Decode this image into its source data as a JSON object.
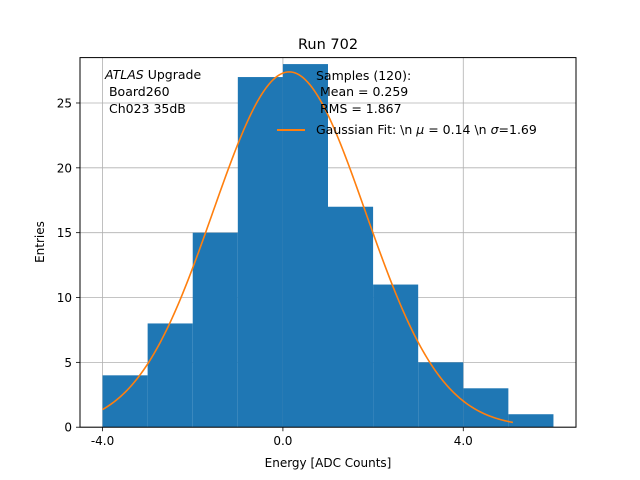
{
  "chart_data": {
    "type": "bar",
    "title": "Run 702",
    "xlabel": "Energy [ADC Counts]",
    "ylabel": "Entries",
    "xlim": [
      -4.5,
      6.5
    ],
    "ylim": [
      0,
      28.5
    ],
    "grid": true,
    "x_ticks": [
      -4.0,
      0.0,
      4.0
    ],
    "x_tick_labels": [
      "-4.0",
      "0.0",
      "4.0"
    ],
    "y_ticks": [
      0,
      5,
      10,
      15,
      20,
      25
    ],
    "y_tick_labels": [
      "0",
      "5",
      "10",
      "15",
      "20",
      "25"
    ],
    "histogram": {
      "bin_edges": [
        -4,
        -3,
        -2,
        -1,
        0,
        1,
        2,
        3,
        4,
        5,
        6
      ],
      "counts": [
        4,
        8,
        15,
        27,
        28,
        17,
        11,
        5,
        3,
        1
      ],
      "color": "#1f77b4"
    },
    "fit": {
      "type": "gaussian",
      "amplitude": 27.4,
      "mu": 0.14,
      "sigma": 1.69,
      "x_range": [
        -4.0,
        5.1
      ],
      "color": "#ff7f0e"
    },
    "annotation": {
      "line1_italic": "ATLAS",
      "line1_rest": " Upgrade",
      "line2": " Board260",
      "line3": " Ch023 35dB"
    },
    "legend": {
      "position": "top-right",
      "header_lines": [
        "Samples (120):",
        " Mean = 0.259",
        " RMS = 1.867"
      ],
      "fit_label_prefix": "Gaussian Fit: \\n ",
      "fit_label_mu_sym": "μ",
      "fit_label_mid": " = 0.14 \\n ",
      "fit_label_sigma_sym": "σ",
      "fit_label_end": "=1.69"
    }
  }
}
